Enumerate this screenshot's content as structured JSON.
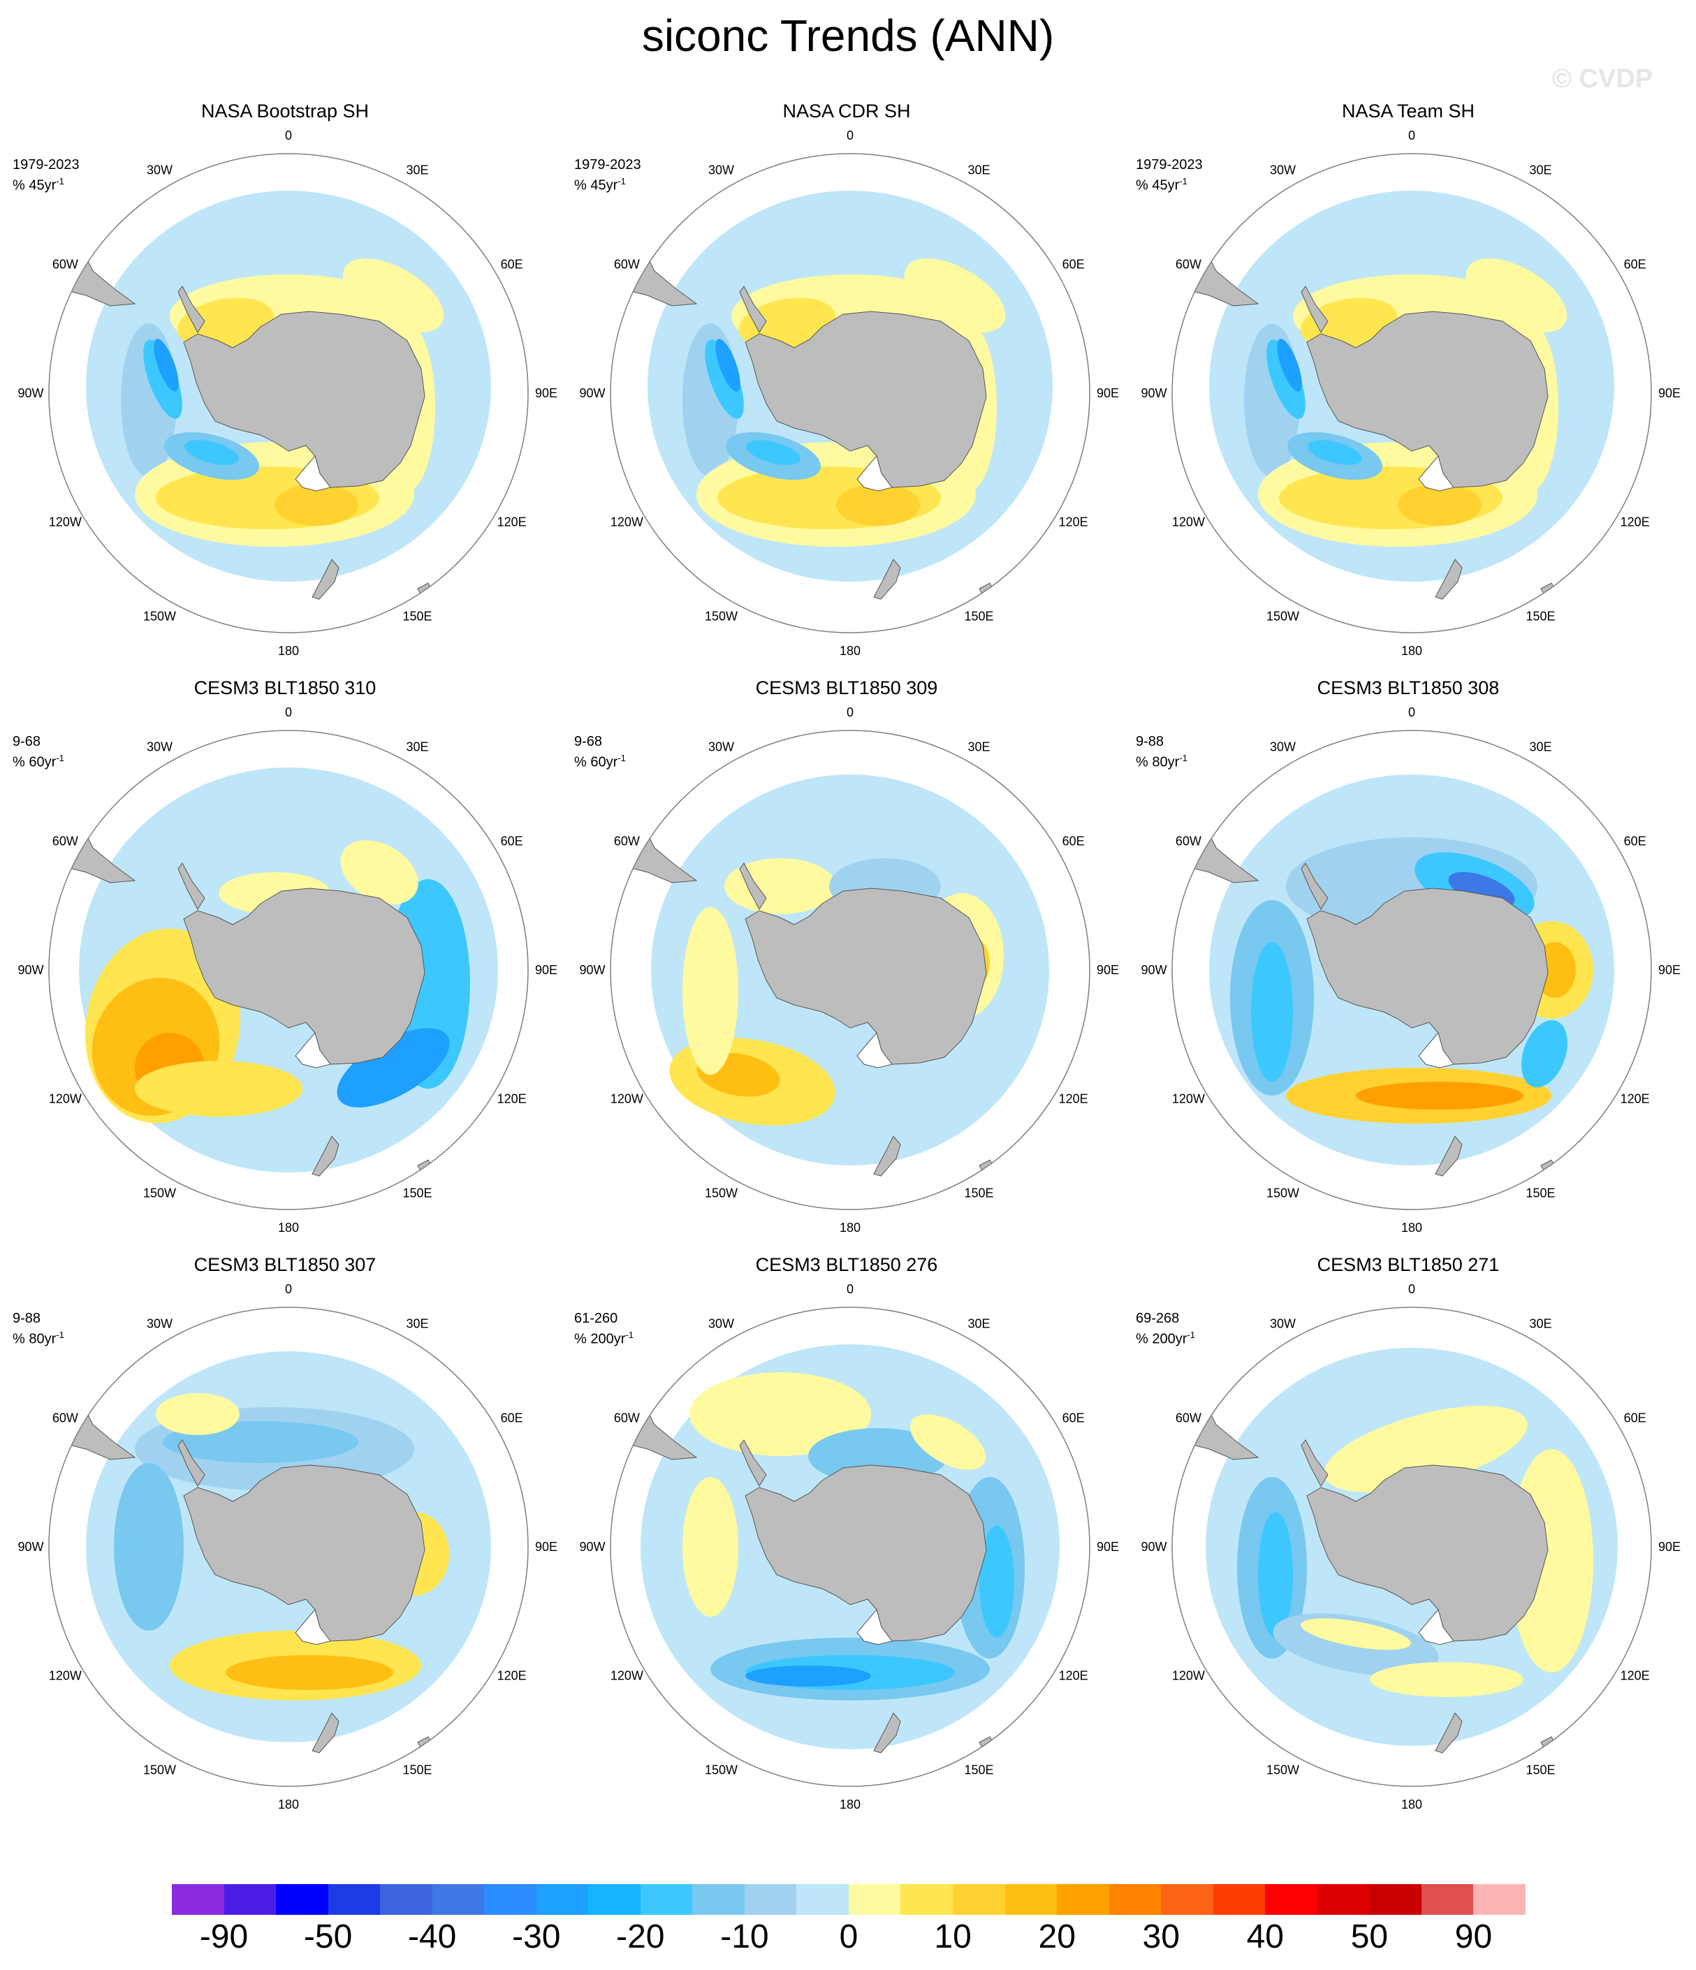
{
  "title": "siconc Trends (ANN)",
  "watermark": "© CVDP",
  "longitude_labels": [
    "0",
    "30E",
    "60E",
    "90E",
    "120E",
    "150E",
    "180",
    "150W",
    "120W",
    "90W",
    "60W",
    "30W"
  ],
  "colors": {
    "land": "#bdbdbd",
    "circle": "#7f7f7f"
  },
  "panels": [
    {
      "title": "NASA Bootstrap SH",
      "period": "1979-2023",
      "units": "% 45yr",
      "units_exp": "-1",
      "pattern": "obs"
    },
    {
      "title": "NASA CDR SH",
      "period": "1979-2023",
      "units": "% 45yr",
      "units_exp": "-1",
      "pattern": "obs"
    },
    {
      "title": "NASA Team SH",
      "period": "1979-2023",
      "units": "% 45yr",
      "units_exp": "-1",
      "pattern": "obs"
    },
    {
      "title": "CESM3 BLT1850 310",
      "period": "9-68",
      "units": "% 60yr",
      "units_exp": "-1",
      "pattern": "m310"
    },
    {
      "title": "CESM3 BLT1850 309",
      "period": "9-68",
      "units": "% 60yr",
      "units_exp": "-1",
      "pattern": "m309"
    },
    {
      "title": "CESM3 BLT1850 308",
      "period": "9-88",
      "units": "% 80yr",
      "units_exp": "-1",
      "pattern": "m308"
    },
    {
      "title": "CESM3 BLT1850 307",
      "period": "9-88",
      "units": "% 80yr",
      "units_exp": "-1",
      "pattern": "m307"
    },
    {
      "title": "CESM3 BLT1850 276",
      "period": "61-260",
      "units": "% 200yr",
      "units_exp": "-1",
      "pattern": "m276"
    },
    {
      "title": "CESM3 BLT1850 271",
      "period": "69-268",
      "units": "% 200yr",
      "units_exp": "-1",
      "pattern": "m271"
    }
  ],
  "colorbar": {
    "colors": [
      "#8a2be2",
      "#4b1ee8",
      "#0000ff",
      "#1e3ce6",
      "#3c64dc",
      "#3c78e6",
      "#2a8cff",
      "#1ea0ff",
      "#14b4ff",
      "#3cc8ff",
      "#78c8f0",
      "#a0d2f0",
      "#bee6f8",
      "#fffaa0",
      "#ffe650",
      "#ffd232",
      "#ffbe14",
      "#ffa000",
      "#ff8200",
      "#ff6414",
      "#ff3c00",
      "#ff0000",
      "#dc0000",
      "#c80000",
      "#e05050",
      "#ffb4b4"
    ],
    "labels": [
      "-90",
      "-50",
      "-40",
      "-30",
      "-20",
      "-10",
      "0",
      "10",
      "20",
      "30",
      "40",
      "50",
      "90"
    ]
  }
}
